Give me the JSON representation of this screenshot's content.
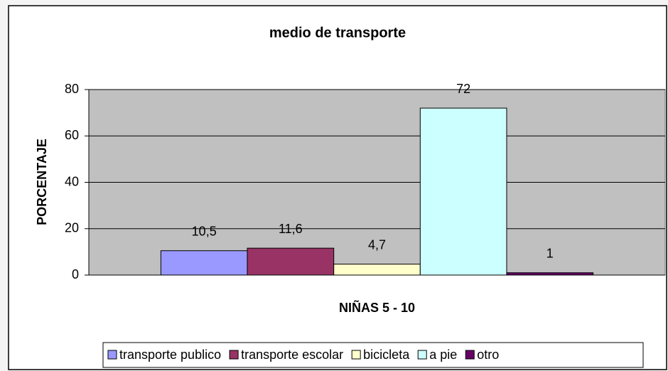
{
  "chart_data": {
    "type": "bar",
    "title": "medio de transporte",
    "y_label": "PORCENTAJE",
    "categories": [
      "NIÑAS 5 - 10"
    ],
    "series": [
      {
        "name": "transporte publico",
        "color": "#9999ff",
        "values": [
          10.5
        ],
        "value_labels": [
          "10,5"
        ]
      },
      {
        "name": "transporte escolar",
        "color": "#993366",
        "values": [
          11.6
        ],
        "value_labels": [
          "11,6"
        ]
      },
      {
        "name": "bicicleta",
        "color": "#ffffcc",
        "values": [
          4.7
        ],
        "value_labels": [
          "4,7"
        ]
      },
      {
        "name": "a pie",
        "color": "#ccffff",
        "values": [
          72
        ],
        "value_labels": [
          "72"
        ]
      },
      {
        "name": "otro",
        "color": "#660066",
        "values": [
          1
        ],
        "value_labels": [
          "1"
        ]
      }
    ],
    "ylim": [
      0,
      80
    ],
    "yticks": [
      0,
      20,
      40,
      60,
      80
    ],
    "grid": true,
    "legend": "bottom"
  }
}
